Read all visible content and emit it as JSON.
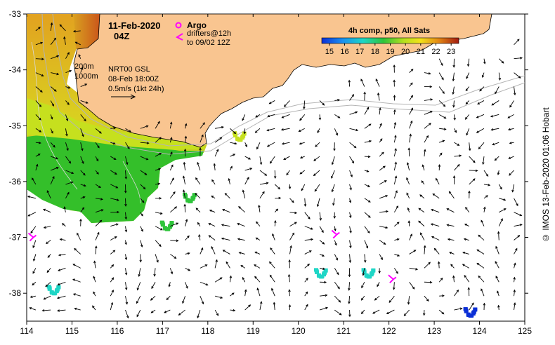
{
  "header": {
    "date": "11-Feb-2020",
    "time": "04Z",
    "argo_label": "Argo",
    "drifters_line1": "drifters@12h",
    "drifters_line2": "to 09/02 12Z"
  },
  "colorbar": {
    "title": "4h comp, p50, All Sats",
    "ticks": [
      "15",
      "16",
      "17",
      "18",
      "19",
      "20",
      "21",
      "22",
      "23"
    ],
    "min": 14.5,
    "max": 23.5
  },
  "isobaths": {
    "shallow": "200m",
    "deep": "1000m"
  },
  "altimetry": {
    "line1": "NRT00 GSL",
    "line2": "08-Feb 18:00Z",
    "scale_label": "0.5m/s (1kt 24h)"
  },
  "axes": {
    "lon_ticks": [
      "114",
      "115",
      "116",
      "117",
      "118",
      "119",
      "120",
      "121",
      "122",
      "123",
      "124",
      "125"
    ],
    "lat_ticks": [
      "-33",
      "-34",
      "-35",
      "-36",
      "-37",
      "-38"
    ],
    "lon_range": [
      114,
      125
    ],
    "lat_range": [
      -38.5,
      -33
    ]
  },
  "credit": "© IMOS 13-Feb-2020 01:06 Hobart",
  "colors": {
    "land": "#f9c590",
    "drifter": "#ff00ff",
    "argo": "#ff00ff",
    "isobath": "#b4b4b4"
  },
  "drifters": [
    {
      "lon": 114.1,
      "lat": -37.0
    },
    {
      "lon": 120.8,
      "lat": -36.95
    },
    {
      "lon": 122.05,
      "lat": -37.75
    }
  ],
  "sst_patches": [
    {
      "lon": 114.6,
      "lat": -37.95,
      "temp": 17.0
    },
    {
      "lon": 120.5,
      "lat": -37.65,
      "temp": 17.5
    },
    {
      "lon": 121.55,
      "lat": -37.65,
      "temp": 16.8
    },
    {
      "lon": 123.8,
      "lat": -38.35,
      "temp": 15.5
    },
    {
      "lon": 117.6,
      "lat": -36.3,
      "temp": 18.5
    },
    {
      "lon": 117.1,
      "lat": -36.8,
      "temp": 18.3
    },
    {
      "lon": 118.7,
      "lat": -35.2,
      "temp": 19.9
    }
  ]
}
